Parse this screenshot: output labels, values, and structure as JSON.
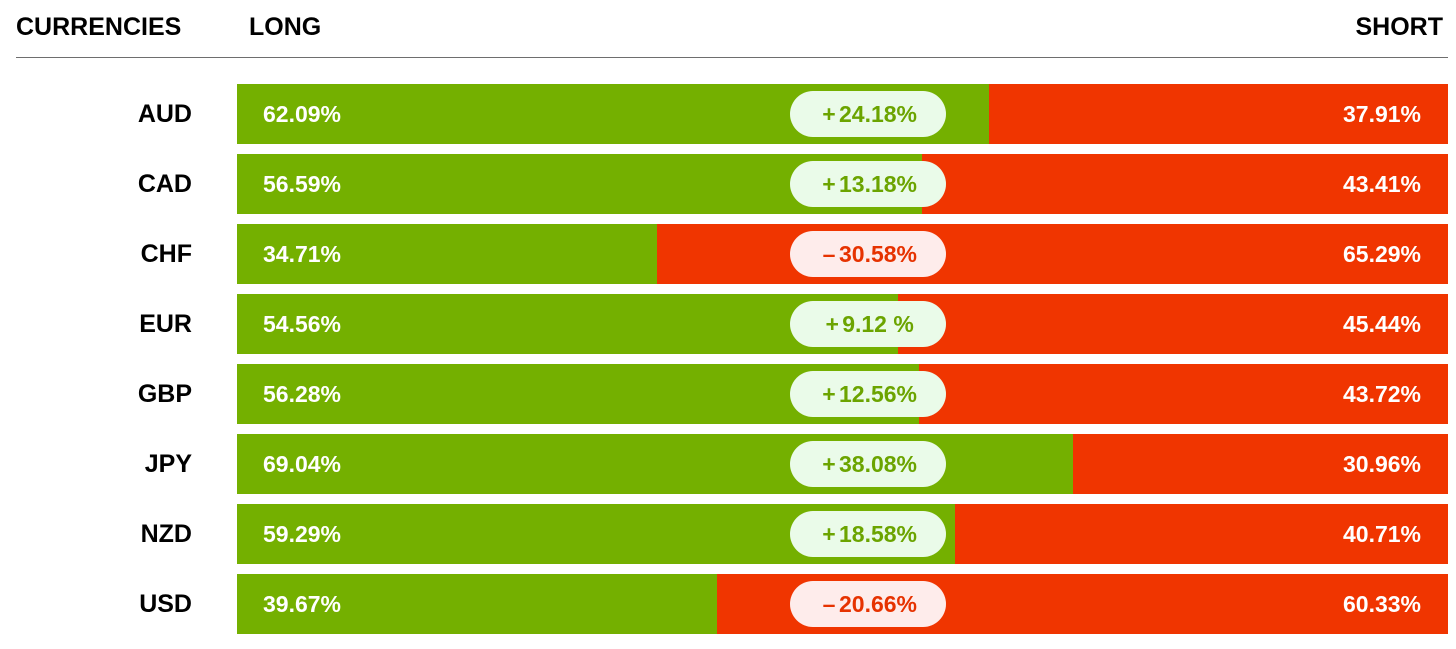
{
  "header": {
    "currencies_label": "CURRENCIES",
    "long_label": "LONG",
    "short_label": "SHORT"
  },
  "colors": {
    "long": "#74b000",
    "short": "#f03500",
    "pill_positive_bg": "#eafbe9",
    "pill_negative_bg": "#feeceb",
    "pill_positive_text": "#6ba400",
    "pill_negative_text": "#e63200"
  },
  "chart_data": {
    "type": "bar",
    "orientation": "horizontal",
    "stacked": true,
    "categories": [
      "AUD",
      "CAD",
      "CHF",
      "EUR",
      "GBP",
      "JPY",
      "NZD",
      "USD"
    ],
    "series": [
      {
        "name": "LONG",
        "values": [
          62.09,
          56.59,
          34.71,
          54.56,
          56.28,
          69.04,
          59.29,
          39.67
        ],
        "labels": [
          "62.09%",
          "56.59%",
          "34.71%",
          "54.56%",
          "56.28%",
          "69.04%",
          "59.29%",
          "39.67%"
        ]
      },
      {
        "name": "SHORT",
        "values": [
          37.91,
          43.41,
          65.29,
          45.44,
          43.72,
          30.96,
          40.71,
          60.33
        ],
        "labels": [
          "37.91%",
          "43.41%",
          "65.29%",
          "45.44%",
          "43.72%",
          "30.96%",
          "40.71%",
          "60.33%"
        ]
      }
    ],
    "net": {
      "values": [
        24.18,
        13.18,
        -30.58,
        9.12,
        12.56,
        38.08,
        18.58,
        -20.66
      ],
      "signs": [
        "+",
        "+",
        "–",
        "+",
        "+",
        "+",
        "+",
        "–"
      ],
      "labels": [
        "24.18%",
        "13.18%",
        "30.58%",
        "9.12 %",
        "12.56%",
        "38.08%",
        "18.58%",
        "20.66%"
      ]
    },
    "xlim": [
      0,
      100
    ]
  }
}
